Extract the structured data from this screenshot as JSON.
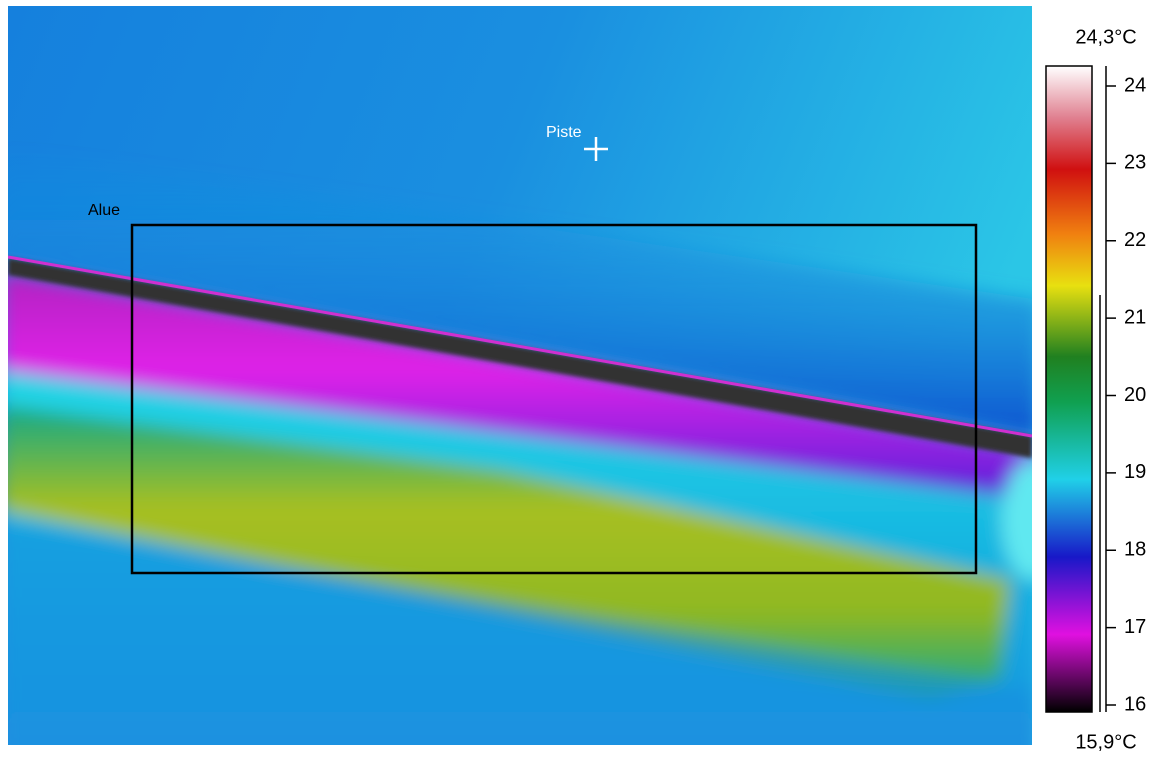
{
  "image": {
    "spot_label": "Piste",
    "area_label": "Alue"
  },
  "scale": {
    "max_label": "24,3°C",
    "min_label": "15,9°C",
    "ticks": [
      16,
      17,
      18,
      19,
      20,
      21,
      22,
      23,
      24
    ]
  }
}
